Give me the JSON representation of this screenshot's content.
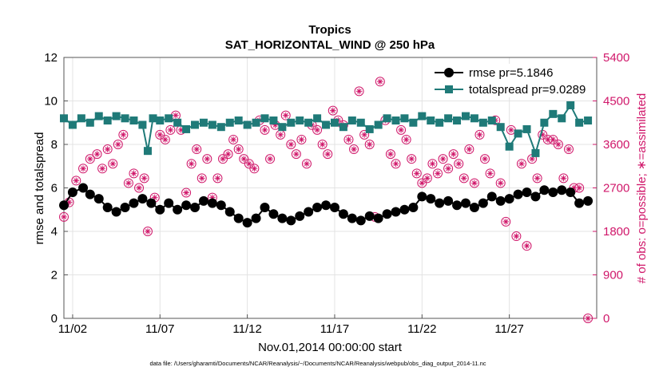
{
  "colors": {
    "rmse": "#000000",
    "spread": "#1f7a78",
    "obs": "#d0176a",
    "grid": "#e3e3e3",
    "axis": "#555555"
  },
  "chart_data": {
    "type": "line",
    "title": "Tropics",
    "subtitle": "SAT_HORIZONTAL_WIND @ 250 hPa",
    "xlabel": "Nov.01,2014 00:00:00 start",
    "ylabel": "rmse and totalspread",
    "ylabel_right": "# of obs: o=possible; ∗=assimilated",
    "footnote": "data file: /Users/gharamti/Documents/NCAR/Reanalysis/~/Documents/NCAR/Reanalysis/webpub/obs_diag_output_2014-11.nc",
    "x_range_days": [
      0.5,
      31.0
    ],
    "ylim": [
      0,
      12
    ],
    "ylim_right": [
      0,
      5400
    ],
    "x_ticks": [
      {
        "day": 1,
        "label": "11/02"
      },
      {
        "day": 6,
        "label": "11/07"
      },
      {
        "day": 11,
        "label": "11/12"
      },
      {
        "day": 16,
        "label": "11/17"
      },
      {
        "day": 21,
        "label": "11/22"
      },
      {
        "day": 26,
        "label": "11/27"
      }
    ],
    "y_ticks": [
      "0",
      "2",
      "4",
      "6",
      "8",
      "10",
      "12"
    ],
    "y_ticks_right": [
      "0",
      "900",
      "1800",
      "2700",
      "3600",
      "4500",
      "5400"
    ],
    "legend": {
      "position": "top-right",
      "entries": [
        {
          "series": "rmse",
          "label": "rmse pr=5.1846"
        },
        {
          "series": "totalspread",
          "label": "totalspread pr=9.0289"
        }
      ]
    },
    "series": [
      {
        "name": "rmse",
        "marker": "circle",
        "axis": "left",
        "points": [
          [
            0.5,
            5.2
          ],
          [
            1.0,
            5.8
          ],
          [
            1.6,
            6.0
          ],
          [
            2.0,
            5.7
          ],
          [
            2.5,
            5.5
          ],
          [
            3.0,
            5.1
          ],
          [
            3.5,
            4.9
          ],
          [
            4.0,
            5.1
          ],
          [
            4.5,
            5.3
          ],
          [
            5.0,
            5.5
          ],
          [
            5.5,
            5.3
          ],
          [
            6.0,
            5.0
          ],
          [
            6.5,
            5.3
          ],
          [
            7.0,
            5.0
          ],
          [
            7.5,
            5.2
          ],
          [
            8.0,
            5.1
          ],
          [
            8.5,
            5.4
          ],
          [
            9.0,
            5.3
          ],
          [
            9.5,
            5.2
          ],
          [
            10.0,
            4.9
          ],
          [
            10.5,
            4.6
          ],
          [
            11.0,
            4.4
          ],
          [
            11.5,
            4.6
          ],
          [
            12.0,
            5.1
          ],
          [
            12.5,
            4.8
          ],
          [
            13.0,
            4.6
          ],
          [
            13.5,
            4.5
          ],
          [
            14.0,
            4.7
          ],
          [
            14.5,
            4.9
          ],
          [
            15.0,
            5.1
          ],
          [
            15.5,
            5.2
          ],
          [
            16.0,
            5.1
          ],
          [
            16.5,
            4.8
          ],
          [
            17.0,
            4.6
          ],
          [
            17.5,
            4.5
          ],
          [
            18.0,
            4.7
          ],
          [
            18.5,
            4.6
          ],
          [
            19.0,
            4.8
          ],
          [
            19.5,
            4.9
          ],
          [
            20.0,
            5.0
          ],
          [
            20.5,
            5.1
          ],
          [
            21.0,
            5.6
          ],
          [
            21.5,
            5.5
          ],
          [
            22.0,
            5.3
          ],
          [
            22.5,
            5.4
          ],
          [
            23.0,
            5.2
          ],
          [
            23.5,
            5.3
          ],
          [
            24.0,
            5.1
          ],
          [
            24.5,
            5.3
          ],
          [
            25.0,
            5.6
          ],
          [
            25.5,
            5.4
          ],
          [
            26.0,
            5.5
          ],
          [
            26.5,
            5.7
          ],
          [
            27.0,
            5.8
          ],
          [
            27.5,
            5.6
          ],
          [
            28.0,
            5.9
          ],
          [
            28.5,
            5.8
          ],
          [
            29.0,
            5.9
          ],
          [
            29.5,
            5.8
          ],
          [
            30.0,
            5.3
          ],
          [
            30.5,
            5.4
          ]
        ]
      },
      {
        "name": "totalspread",
        "marker": "square",
        "axis": "left",
        "points": [
          [
            0.5,
            9.2
          ],
          [
            1.0,
            8.9
          ],
          [
            1.5,
            9.2
          ],
          [
            2.0,
            9.0
          ],
          [
            2.5,
            9.3
          ],
          [
            3.0,
            9.1
          ],
          [
            3.5,
            9.3
          ],
          [
            4.0,
            9.2
          ],
          [
            4.5,
            9.1
          ],
          [
            5.0,
            8.9
          ],
          [
            5.3,
            7.7
          ],
          [
            5.6,
            9.2
          ],
          [
            6.0,
            9.1
          ],
          [
            6.5,
            9.2
          ],
          [
            7.0,
            9.0
          ],
          [
            7.5,
            8.7
          ],
          [
            8.0,
            8.9
          ],
          [
            8.5,
            9.0
          ],
          [
            9.0,
            8.9
          ],
          [
            9.5,
            8.8
          ],
          [
            10.0,
            9.0
          ],
          [
            10.5,
            9.1
          ],
          [
            11.0,
            8.9
          ],
          [
            11.5,
            9.0
          ],
          [
            12.0,
            9.2
          ],
          [
            12.5,
            9.1
          ],
          [
            13.0,
            8.8
          ],
          [
            13.5,
            9.0
          ],
          [
            14.0,
            9.1
          ],
          [
            14.5,
            9.0
          ],
          [
            15.0,
            9.2
          ],
          [
            15.5,
            8.9
          ],
          [
            16.0,
            9.0
          ],
          [
            16.5,
            8.8
          ],
          [
            17.0,
            9.1
          ],
          [
            17.5,
            9.0
          ],
          [
            18.0,
            8.7
          ],
          [
            18.5,
            8.9
          ],
          [
            19.0,
            9.2
          ],
          [
            19.5,
            9.1
          ],
          [
            20.0,
            9.2
          ],
          [
            20.5,
            9.0
          ],
          [
            21.0,
            9.3
          ],
          [
            21.5,
            9.1
          ],
          [
            22.0,
            9.0
          ],
          [
            22.5,
            9.2
          ],
          [
            23.0,
            9.1
          ],
          [
            23.5,
            9.3
          ],
          [
            24.0,
            9.2
          ],
          [
            24.5,
            9.0
          ],
          [
            25.0,
            9.1
          ],
          [
            25.5,
            8.8
          ],
          [
            26.0,
            7.9
          ],
          [
            26.5,
            8.5
          ],
          [
            27.0,
            8.7
          ],
          [
            27.5,
            7.6
          ],
          [
            28.0,
            9.0
          ],
          [
            28.5,
            9.4
          ],
          [
            29.0,
            9.2
          ],
          [
            29.5,
            9.8
          ],
          [
            30.0,
            9.0
          ],
          [
            30.5,
            9.1
          ]
        ]
      },
      {
        "name": "obs_possible_assimilated",
        "marker": "circle-asterisk",
        "axis": "right",
        "points": [
          [
            0.5,
            2100
          ],
          [
            0.8,
            2400
          ],
          [
            1.2,
            2850
          ],
          [
            1.6,
            3100
          ],
          [
            2.0,
            3300
          ],
          [
            2.4,
            3400
          ],
          [
            2.7,
            3100
          ],
          [
            3.0,
            3500
          ],
          [
            3.3,
            3200
          ],
          [
            3.6,
            3600
          ],
          [
            3.9,
            3800
          ],
          [
            4.2,
            2800
          ],
          [
            4.5,
            3000
          ],
          [
            4.8,
            2700
          ],
          [
            5.1,
            2900
          ],
          [
            5.3,
            1800
          ],
          [
            5.7,
            2500
          ],
          [
            6.0,
            3800
          ],
          [
            6.3,
            3700
          ],
          [
            6.6,
            3900
          ],
          [
            6.9,
            4200
          ],
          [
            7.2,
            3900
          ],
          [
            7.5,
            2600
          ],
          [
            7.8,
            3200
          ],
          [
            8.1,
            3500
          ],
          [
            8.4,
            2900
          ],
          [
            8.7,
            3300
          ],
          [
            9.0,
            2500
          ],
          [
            9.3,
            2900
          ],
          [
            9.6,
            3300
          ],
          [
            9.9,
            3400
          ],
          [
            10.2,
            3700
          ],
          [
            10.5,
            3500
          ],
          [
            10.8,
            3300
          ],
          [
            11.1,
            3200
          ],
          [
            11.4,
            3100
          ],
          [
            11.7,
            4100
          ],
          [
            12.0,
            3900
          ],
          [
            12.3,
            3300
          ],
          [
            12.6,
            4000
          ],
          [
            12.9,
            3800
          ],
          [
            13.2,
            4200
          ],
          [
            13.5,
            3600
          ],
          [
            13.8,
            3400
          ],
          [
            14.1,
            3700
          ],
          [
            14.4,
            3200
          ],
          [
            14.7,
            4000
          ],
          [
            15.0,
            3900
          ],
          [
            15.3,
            3600
          ],
          [
            15.6,
            3400
          ],
          [
            15.9,
            4300
          ],
          [
            16.2,
            4100
          ],
          [
            16.5,
            4000
          ],
          [
            16.8,
            3700
          ],
          [
            17.1,
            3500
          ],
          [
            17.4,
            4700
          ],
          [
            17.7,
            3800
          ],
          [
            18.0,
            3600
          ],
          [
            18.3,
            2100
          ],
          [
            18.6,
            4900
          ],
          [
            18.9,
            4100
          ],
          [
            19.2,
            3400
          ],
          [
            19.5,
            3200
          ],
          [
            19.8,
            3900
          ],
          [
            20.1,
            3700
          ],
          [
            20.4,
            3300
          ],
          [
            20.7,
            3000
          ],
          [
            21.0,
            2800
          ],
          [
            21.3,
            2900
          ],
          [
            21.6,
            3200
          ],
          [
            21.9,
            3000
          ],
          [
            22.2,
            3300
          ],
          [
            22.5,
            3100
          ],
          [
            22.8,
            3400
          ],
          [
            23.1,
            3200
          ],
          [
            23.4,
            2900
          ],
          [
            23.7,
            3500
          ],
          [
            24.0,
            2800
          ],
          [
            24.3,
            3800
          ],
          [
            24.6,
            3300
          ],
          [
            24.9,
            3000
          ],
          [
            25.2,
            4100
          ],
          [
            25.5,
            2800
          ],
          [
            25.8,
            2000
          ],
          [
            26.1,
            3900
          ],
          [
            26.4,
            1700
          ],
          [
            26.7,
            3200
          ],
          [
            27.0,
            1500
          ],
          [
            27.3,
            3300
          ],
          [
            27.6,
            2900
          ],
          [
            27.9,
            3800
          ],
          [
            28.2,
            3700
          ],
          [
            28.5,
            3700
          ],
          [
            28.8,
            3600
          ],
          [
            29.1,
            2900
          ],
          [
            29.4,
            3500
          ],
          [
            29.7,
            2700
          ],
          [
            30.0,
            2700
          ],
          [
            30.5,
            0
          ]
        ]
      }
    ]
  }
}
